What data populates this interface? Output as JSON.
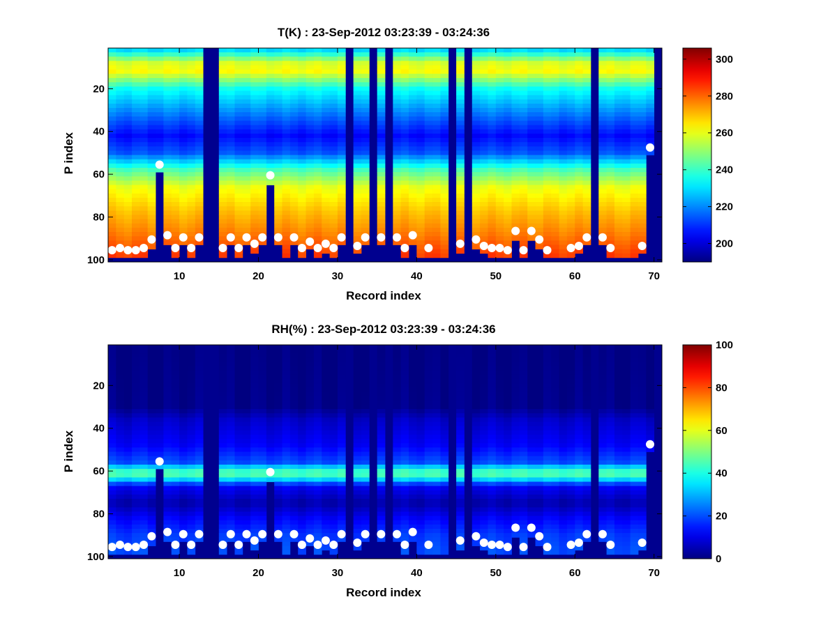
{
  "chart_data": [
    {
      "type": "heatmap",
      "title": "T(K) : 23-Sep-2012 03:23:39 - 03:24:36",
      "xlabel": "Record index",
      "ylabel": "P index",
      "xlim": [
        1,
        71
      ],
      "ylim": [
        1,
        101
      ],
      "y_reversed": true,
      "xticks": [
        10,
        20,
        30,
        40,
        50,
        60,
        70
      ],
      "yticks": [
        20,
        40,
        60,
        80,
        100
      ],
      "colorbar": {
        "min": 190,
        "max": 306,
        "ticks": [
          200,
          220,
          240,
          260,
          280,
          300
        ],
        "colormap": "jet"
      },
      "profile": [
        [
          1,
          225
        ],
        [
          8,
          258
        ],
        [
          12,
          262
        ],
        [
          20,
          235
        ],
        [
          35,
          214
        ],
        [
          42,
          205
        ],
        [
          50,
          214
        ],
        [
          58,
          242
        ],
        [
          66,
          260
        ],
        [
          78,
          270
        ],
        [
          88,
          277
        ],
        [
          97,
          284
        ],
        [
          101,
          286
        ]
      ],
      "missing_records": [
        13,
        14,
        31,
        34,
        36,
        44,
        46,
        62,
        70
      ],
      "missing_color": "#00008f",
      "marker_records": [
        1,
        2,
        3,
        4,
        5,
        6,
        7,
        8,
        9,
        10,
        11,
        12,
        15,
        16,
        17,
        18,
        19,
        20,
        21,
        22,
        24,
        25,
        26,
        27,
        28,
        29,
        30,
        32,
        33,
        35,
        37,
        38,
        39,
        41,
        45,
        47,
        48,
        49,
        50,
        51,
        52,
        53,
        54,
        55,
        56,
        59,
        60,
        61,
        63,
        64,
        68,
        69
      ],
      "marker_p": [
        95,
        94,
        95,
        95,
        94,
        90,
        55,
        88,
        94,
        89,
        94,
        89,
        94,
        89,
        94,
        89,
        92,
        89,
        60,
        89,
        89,
        94,
        91,
        94,
        92,
        94,
        89,
        93,
        89,
        89,
        89,
        94,
        88,
        94,
        92,
        90,
        93,
        94,
        94,
        95,
        86,
        95,
        86,
        90,
        95,
        94,
        93,
        89,
        89,
        94,
        93,
        47
      ],
      "marker_color": "#ffffff"
    },
    {
      "type": "heatmap",
      "title": "RH(%) : 23-Sep-2012 03:23:39 - 03:24:36",
      "xlabel": "Record index",
      "ylabel": "P index",
      "xlim": [
        1,
        71
      ],
      "ylim": [
        1,
        101
      ],
      "y_reversed": true,
      "xticks": [
        10,
        20,
        30,
        40,
        50,
        60,
        70
      ],
      "yticks": [
        20,
        40,
        60,
        80,
        100
      ],
      "colorbar": {
        "min": 0,
        "max": 100,
        "ticks": [
          0,
          20,
          40,
          60,
          80,
          100
        ],
        "colormap": "jet"
      },
      "profile": [
        [
          1,
          0
        ],
        [
          30,
          1
        ],
        [
          36,
          7
        ],
        [
          48,
          12
        ],
        [
          56,
          20
        ],
        [
          59,
          38
        ],
        [
          61,
          48
        ],
        [
          63,
          40
        ],
        [
          67,
          12
        ],
        [
          75,
          4
        ],
        [
          82,
          12
        ],
        [
          90,
          18
        ],
        [
          97,
          20
        ],
        [
          101,
          20
        ]
      ],
      "missing_records": [
        13,
        14,
        31,
        34,
        36,
        44,
        46,
        62,
        70
      ],
      "missing_color": "#00008f",
      "marker_records": [
        1,
        2,
        3,
        4,
        5,
        6,
        7,
        8,
        9,
        10,
        11,
        12,
        15,
        16,
        17,
        18,
        19,
        20,
        21,
        22,
        24,
        25,
        26,
        27,
        28,
        29,
        30,
        32,
        33,
        35,
        37,
        38,
        39,
        41,
        45,
        47,
        48,
        49,
        50,
        51,
        52,
        53,
        54,
        55,
        56,
        59,
        60,
        61,
        63,
        64,
        68,
        69
      ],
      "marker_p": [
        95,
        94,
        95,
        95,
        94,
        90,
        55,
        88,
        94,
        89,
        94,
        89,
        94,
        89,
        94,
        89,
        92,
        89,
        60,
        89,
        89,
        94,
        91,
        94,
        92,
        94,
        89,
        93,
        89,
        89,
        89,
        94,
        88,
        94,
        92,
        90,
        93,
        94,
        94,
        95,
        86,
        95,
        86,
        90,
        95,
        94,
        93,
        89,
        89,
        94,
        93,
        47
      ],
      "marker_color": "#ffffff"
    }
  ]
}
